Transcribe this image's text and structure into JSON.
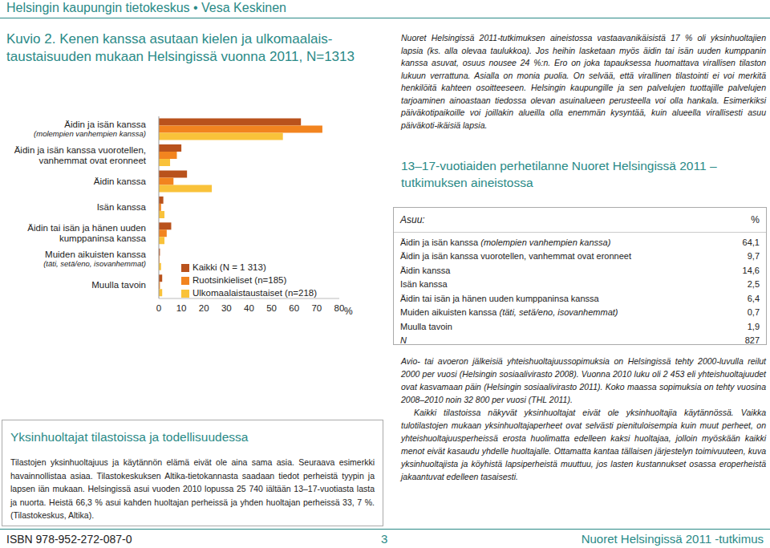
{
  "header": {
    "title": "Helsingin kaupungin tietokeskus • Vesa Keskinen"
  },
  "chart_data": {
    "type": "bar",
    "orientation": "horizontal",
    "title": "Kuvio 2. Kenen kanssa asutaan kielen ja ulkomaalais-taustaisuuden mukaan Helsingissä vuonna 2011, N=1313",
    "categories": [
      "Äidin ja isän kanssa (molempien vanhempien kanssa)",
      "Äidin ja isän kanssa vuorotellen, vanhemmat ovat eronneet",
      "Äidin kanssa",
      "Isän kanssa",
      "Äidin tai isän ja hänen uuden kumppaninsa kanssa",
      "Muiden aikuisten kanssa (täti, setä/eno, isovanhemmat)",
      "Muulla tavoin"
    ],
    "series": [
      {
        "name": "Kaikki (N = 1 313)",
        "color": "#b9521c",
        "values": [
          63,
          10,
          12.5,
          2,
          5.5,
          0.5,
          1.5
        ]
      },
      {
        "name": "Ruotsinkieliset (n=185)",
        "color": "#f2841f",
        "values": [
          72.5,
          8,
          6.5,
          1,
          3.5,
          0.3,
          0.5
        ]
      },
      {
        "name": "Ulkomaalaistaustaiset (n=218)",
        "color": "#f9c23a",
        "values": [
          55,
          5,
          23.5,
          2.5,
          2.5,
          1,
          1.5
        ]
      }
    ],
    "xlim": [
      0,
      80
    ],
    "xticks": [
      0,
      10,
      20,
      30,
      40,
      50,
      60,
      70,
      80
    ],
    "xlabel": "%",
    "legend": "center",
    "grid": false
  },
  "right_top_text": "Nuoret Helsingissä 2011-tutkimuksen aineistossa vastaavanikäisistä 17 % oli yksinhuoltajien lapsia (ks. alla olevaa taulukkoa). Jos heihin lasketaan myös äidin tai isän uuden kumppanin kanssa asuvat, osuus nousee 24 %:n. Ero on joka tapauksessa huomattava virallisen tilaston lukuun verrattuna. Asialla on monia puolia. On selvää, että virallinen tilastointi ei voi merkitä henkilöitä kahteen osoitteeseen. Helsingin kaupungille ja sen palvelujen tuottajille palvelujen tarjoaminen ainoastaan tiedossa olevan asuinalueen perusteella voi olla hankala. Esimerkiksi päiväkotipaikoille voi joillakin alueilla olla enemmän kysyntää, kuin alueella virallisesti asuu päiväkoti-ikäisiä lapsia.",
  "heading": "13–17-vuotiaiden perhetilanne Nuoret Helsingissä 2011 –tutkimuksen aineistossa",
  "table": {
    "header": [
      "Asuu:",
      "%"
    ],
    "rows": [
      [
        "Äidin ja isän kanssa (molempien vanhempien kanssa)",
        "64,1"
      ],
      [
        "Äidin ja isän kanssa vuorotellen, vanhemmat ovat eronneet",
        "9,7"
      ],
      [
        "Äidin kanssa",
        "14,6"
      ],
      [
        "Isän kanssa",
        "2,5"
      ],
      [
        "Äidin tai isän ja hänen uuden kumppaninsa kanssa",
        "6,4"
      ],
      [
        "Muiden aikuisten kanssa (täti, setä/eno, isovanhemmat)",
        "0,7"
      ],
      [
        "Muulla tavoin",
        "1,9"
      ],
      [
        "N",
        "827"
      ]
    ]
  },
  "right_bottom_text": [
    "Avio- tai avoeron jälkeisiä yhteishuoltajuussopimuksia on Helsingissä tehty 2000-luvulla reilut 2000 per vuosi (Helsingin sosiaalivirasto 2008). Vuonna 2010 luku oli 2 453 eli yhteishuoltajuudet ovat kasvamaan päin (Helsingin sosiaalivirasto 2011). Koko maassa sopimuksia on tehty vuosina 2008–2010 noin 32 800 per vuosi (THL 2011).",
    "Kaikki tilastoissa näkyvät yksinhuoltajat eivät ole yksinhuoltajia käytännössä. Vaikka tulotilastojen mukaan yksinhuoltajaperheet ovat selvästi pienituloisempia kuin muut perheet, on yhteishuoltajuusperheissä erosta huolimatta edelleen kaksi huoltajaa, jolloin myöskään kaikki menot eivät kasaudu yhdelle huoltajalle. Ottamatta kantaa tällaisen järjestelyn toimivuuteen, kuva yksinhuoltajista ja köyhistä lapsiperheistä muuttuu, jos lasten kustannukset osassa eroperheistä jakaantuvat edelleen tasaisesti."
  ],
  "box": {
    "title": "Yksinhuoltajat tilastoissa ja todellisuudessa",
    "text": "Tilastojen yksinhuoltajuus ja käytännön elämä eivät ole aina sama asia. Seuraava esimerkki havainnollistaa asiaa. Tilastokeskuksen Altika-tietokannasta saadaan tiedot perheistä tyypin ja lapsen iän mukaan. Helsingissä asui vuoden 2010 lopussa 25 740 iältään 13–17-vuotiasta lasta ja nuorta. Heistä 66,3 % asui kahden huoltajan perheissä ja yhden huoltajan perheissä 33, 7 %. (Tilastokeskus, Altika)."
  },
  "footer": {
    "isbn": "ISBN 978-952-272-087-0",
    "page": "3",
    "publication": "Nuoret Helsingissä 2011 -tutkimus"
  }
}
